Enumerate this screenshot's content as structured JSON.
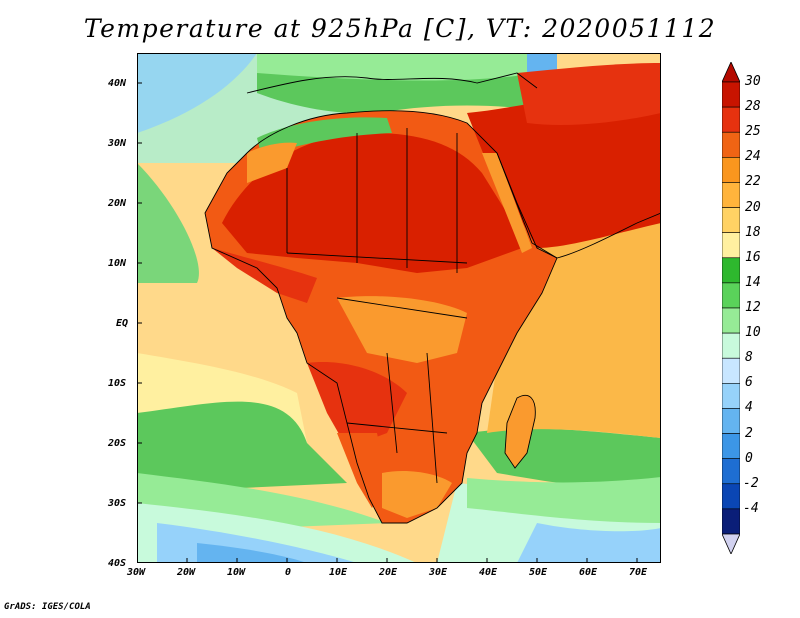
{
  "title": "Temperature at 925hPa [C], VT: 2020051112",
  "credit": "GrADS: IGES/COLA",
  "map": {
    "region": "Africa and surrounding oceans",
    "lat_labels": [
      "40N",
      "30N",
      "20N",
      "10N",
      "EQ",
      "10S",
      "20S",
      "30S",
      "40S"
    ],
    "lon_labels": [
      "30W",
      "20W",
      "10W",
      "0",
      "10E",
      "20E",
      "30E",
      "40E",
      "50E",
      "60E",
      "70E"
    ]
  },
  "colorbar": {
    "labels": [
      "30",
      "28",
      "25",
      "24",
      "22",
      "20",
      "18",
      "16",
      "14",
      "12",
      "10",
      "8",
      "6",
      "4",
      "2",
      "0",
      "-2",
      "-4"
    ],
    "colors": [
      "#c81400",
      "#e6320f",
      "#f06414",
      "#fa961e",
      "#ffb43c",
      "#ffd264",
      "#fff0a0",
      "#2eb82e",
      "#5ad25a",
      "#96eb96",
      "#c8fadc",
      "#c8e6ff",
      "#96d2fa",
      "#64b4f0",
      "#3c96e6",
      "#1e6ed2",
      "#0a46b4",
      "#0a1e78"
    ],
    "top_arrow_color": "#b40a00",
    "bottom_arrow_color": "#d2d2f0"
  },
  "colors": {
    "ocean_cold": "#9ed8f5",
    "ocean_cool": "#c8f0d8",
    "ocean_green": "#7ad67a",
    "ocean_warm": "#ffd98a",
    "land_hot": "#d92000",
    "land_warm": "#f25a14",
    "land_mild": "#fa9a2e",
    "land_green": "#5cc85c"
  }
}
